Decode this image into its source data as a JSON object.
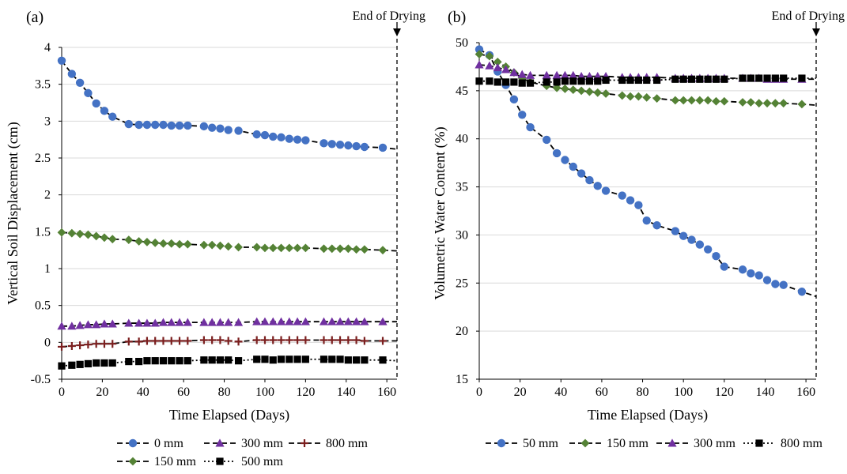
{
  "chart_data": [
    {
      "type": "line",
      "panel_label": "(a)",
      "xlabel": "Time Elapsed (Days)",
      "ylabel": "Vertical Soil Displacement (cm)",
      "xlim": [
        0,
        165
      ],
      "ylim": [
        -0.5,
        4
      ],
      "xticks": [
        0,
        20,
        40,
        60,
        80,
        100,
        120,
        140,
        160
      ],
      "yticks": [
        -0.5,
        0,
        0.5,
        1,
        1.5,
        2,
        2.5,
        3,
        3.5,
        4
      ],
      "grid": "horizontal",
      "legend_position": "bottom",
      "annotation": {
        "text": "End of Drying",
        "x": 165
      },
      "series": [
        {
          "name": "0 mm",
          "marker": "circle",
          "color": "#4472C4",
          "line": "dashed",
          "x": [
            0,
            5,
            9,
            13,
            17,
            21,
            25,
            33,
            38,
            42,
            46,
            50,
            54,
            58,
            62,
            70,
            74,
            78,
            82,
            87,
            96,
            100,
            104,
            108,
            112,
            116,
            120,
            129,
            133,
            137,
            141,
            145,
            149,
            158,
            165
          ],
          "y": [
            3.82,
            3.64,
            3.52,
            3.38,
            3.24,
            3.14,
            3.06,
            2.96,
            2.95,
            2.95,
            2.95,
            2.95,
            2.94,
            2.94,
            2.94,
            2.93,
            2.91,
            2.9,
            2.88,
            2.87,
            2.82,
            2.81,
            2.79,
            2.78,
            2.76,
            2.75,
            2.74,
            2.7,
            2.69,
            2.68,
            2.67,
            2.66,
            2.65,
            2.64,
            2.62
          ]
        },
        {
          "name": "150 mm",
          "marker": "diamond",
          "color": "#548235",
          "line": "dashed",
          "x": [
            0,
            5,
            9,
            13,
            17,
            21,
            25,
            33,
            38,
            42,
            46,
            50,
            54,
            58,
            62,
            70,
            74,
            78,
            82,
            87,
            96,
            100,
            104,
            108,
            112,
            116,
            120,
            129,
            133,
            137,
            141,
            145,
            149,
            158,
            165
          ],
          "y": [
            1.49,
            1.48,
            1.47,
            1.46,
            1.44,
            1.42,
            1.4,
            1.39,
            1.37,
            1.36,
            1.35,
            1.34,
            1.34,
            1.33,
            1.33,
            1.32,
            1.32,
            1.31,
            1.3,
            1.29,
            1.29,
            1.28,
            1.28,
            1.28,
            1.28,
            1.28,
            1.28,
            1.27,
            1.27,
            1.27,
            1.27,
            1.26,
            1.26,
            1.25,
            1.24
          ]
        },
        {
          "name": "300 mm",
          "marker": "triangle",
          "color": "#7030A0",
          "line": "dashed",
          "x": [
            0,
            5,
            9,
            13,
            17,
            21,
            25,
            33,
            38,
            42,
            46,
            50,
            54,
            58,
            62,
            70,
            74,
            78,
            82,
            87,
            96,
            100,
            104,
            108,
            112,
            116,
            120,
            129,
            133,
            137,
            141,
            145,
            149,
            158,
            165
          ],
          "y": [
            0.22,
            0.22,
            0.23,
            0.24,
            0.24,
            0.25,
            0.25,
            0.26,
            0.26,
            0.26,
            0.26,
            0.27,
            0.27,
            0.27,
            0.27,
            0.27,
            0.27,
            0.27,
            0.27,
            0.27,
            0.28,
            0.28,
            0.28,
            0.28,
            0.28,
            0.28,
            0.28,
            0.28,
            0.28,
            0.28,
            0.28,
            0.28,
            0.28,
            0.28,
            0.28
          ]
        },
        {
          "name": "800 mm",
          "marker": "plus",
          "color": "#7B1F1F",
          "line": "dashed",
          "x": [
            0,
            5,
            9,
            13,
            17,
            21,
            25,
            33,
            38,
            42,
            46,
            50,
            54,
            58,
            62,
            70,
            74,
            78,
            82,
            87,
            96,
            100,
            104,
            108,
            112,
            116,
            120,
            129,
            133,
            137,
            141,
            145,
            149,
            158,
            165
          ],
          "y": [
            -0.06,
            -0.05,
            -0.04,
            -0.03,
            -0.02,
            -0.02,
            -0.02,
            0.01,
            0.01,
            0.02,
            0.02,
            0.02,
            0.02,
            0.02,
            0.02,
            0.03,
            0.03,
            0.03,
            0.02,
            0.01,
            0.03,
            0.03,
            0.03,
            0.03,
            0.03,
            0.03,
            0.03,
            0.03,
            0.03,
            0.03,
            0.03,
            0.03,
            0.02,
            0.02,
            0.02
          ]
        },
        {
          "name": "500 mm",
          "marker": "square",
          "color": "#000000",
          "line": "dotted",
          "x": [
            0,
            5,
            9,
            13,
            17,
            21,
            25,
            33,
            38,
            42,
            46,
            50,
            54,
            58,
            62,
            70,
            74,
            78,
            82,
            87,
            96,
            100,
            104,
            108,
            112,
            116,
            120,
            129,
            133,
            137,
            141,
            145,
            149,
            158,
            165
          ],
          "y": [
            -0.32,
            -0.31,
            -0.3,
            -0.29,
            -0.28,
            -0.28,
            -0.28,
            -0.26,
            -0.26,
            -0.25,
            -0.25,
            -0.25,
            -0.25,
            -0.25,
            -0.25,
            -0.24,
            -0.24,
            -0.24,
            -0.24,
            -0.25,
            -0.23,
            -0.23,
            -0.24,
            -0.23,
            -0.23,
            -0.23,
            -0.23,
            -0.23,
            -0.23,
            -0.23,
            -0.24,
            -0.24,
            -0.24,
            -0.24,
            -0.25
          ]
        }
      ]
    },
    {
      "type": "line",
      "panel_label": "(b)",
      "xlabel": "Time Elapsed (Days)",
      "ylabel": "Volumetric Water Content (%)",
      "xlim": [
        0,
        165
      ],
      "ylim": [
        15,
        50
      ],
      "xticks": [
        0,
        20,
        40,
        60,
        80,
        100,
        120,
        140,
        160
      ],
      "yticks": [
        15,
        20,
        25,
        30,
        35,
        40,
        45,
        50
      ],
      "grid": "horizontal",
      "legend_position": "bottom",
      "annotation": {
        "text": "End of Drying",
        "x": 165
      },
      "series": [
        {
          "name": "50 mm",
          "marker": "circle",
          "color": "#4472C4",
          "line": "dashed",
          "x": [
            0,
            5,
            9,
            13,
            17,
            21,
            25,
            33,
            38,
            42,
            46,
            50,
            54,
            58,
            62,
            70,
            74,
            78,
            82,
            87,
            96,
            100,
            104,
            108,
            112,
            116,
            120,
            129,
            133,
            137,
            141,
            145,
            149,
            158,
            165
          ],
          "y": [
            49.3,
            48.7,
            47.0,
            45.6,
            44.1,
            42.5,
            41.2,
            39.9,
            38.5,
            37.8,
            37.1,
            36.4,
            35.7,
            35.1,
            34.6,
            34.1,
            33.6,
            33.1,
            31.5,
            31.0,
            30.4,
            29.9,
            29.5,
            29.0,
            28.5,
            27.8,
            26.7,
            26.4,
            26.0,
            25.8,
            25.3,
            24.9,
            24.8,
            24.1,
            23.6
          ]
        },
        {
          "name": "150 mm",
          "marker": "diamond",
          "color": "#548235",
          "line": "dashed",
          "x": [
            0,
            5,
            9,
            13,
            17,
            21,
            25,
            33,
            38,
            42,
            46,
            50,
            54,
            58,
            62,
            70,
            74,
            78,
            82,
            87,
            96,
            100,
            104,
            108,
            112,
            116,
            120,
            129,
            133,
            137,
            141,
            145,
            149,
            158,
            165
          ],
          "y": [
            48.8,
            48.6,
            48.0,
            47.5,
            46.9,
            46.3,
            45.9,
            45.5,
            45.3,
            45.2,
            45.1,
            45.0,
            44.9,
            44.8,
            44.7,
            44.5,
            44.4,
            44.4,
            44.3,
            44.2,
            44.0,
            44.0,
            44.0,
            44.0,
            44.0,
            43.9,
            43.9,
            43.8,
            43.8,
            43.7,
            43.7,
            43.7,
            43.7,
            43.6,
            43.5
          ]
        },
        {
          "name": "300 mm",
          "marker": "triangle",
          "color": "#7030A0",
          "line": "dashed",
          "x": [
            0,
            5,
            9,
            13,
            17,
            21,
            25,
            33,
            38,
            42,
            46,
            50,
            54,
            58,
            62,
            70,
            74,
            78,
            82,
            87,
            96,
            100,
            104,
            108,
            112,
            116,
            120,
            129,
            133,
            137,
            141,
            145,
            149,
            158,
            165
          ],
          "y": [
            47.7,
            47.6,
            47.4,
            47.2,
            46.9,
            46.7,
            46.6,
            46.6,
            46.6,
            46.6,
            46.6,
            46.5,
            46.5,
            46.5,
            46.5,
            46.4,
            46.4,
            46.4,
            46.4,
            46.4,
            46.3,
            46.3,
            46.3,
            46.3,
            46.3,
            46.3,
            46.3,
            46.3,
            46.3,
            46.3,
            46.2,
            46.2,
            46.2,
            46.2,
            46.2
          ]
        },
        {
          "name": "800 mm",
          "marker": "square",
          "color": "#000000",
          "line": "dotted",
          "x": [
            0,
            5,
            9,
            13,
            17,
            21,
            25,
            33,
            38,
            42,
            46,
            50,
            54,
            58,
            62,
            70,
            74,
            78,
            82,
            87,
            96,
            100,
            104,
            108,
            112,
            116,
            120,
            129,
            133,
            137,
            141,
            145,
            149,
            158,
            165
          ],
          "y": [
            46.0,
            46.0,
            45.9,
            45.9,
            45.9,
            45.8,
            45.8,
            45.9,
            45.9,
            46.0,
            46.0,
            46.0,
            46.0,
            46.0,
            46.1,
            46.1,
            46.1,
            46.1,
            46.1,
            46.1,
            46.2,
            46.2,
            46.2,
            46.2,
            46.2,
            46.2,
            46.2,
            46.3,
            46.3,
            46.3,
            46.3,
            46.3,
            46.3,
            46.3,
            46.3
          ]
        }
      ]
    }
  ]
}
